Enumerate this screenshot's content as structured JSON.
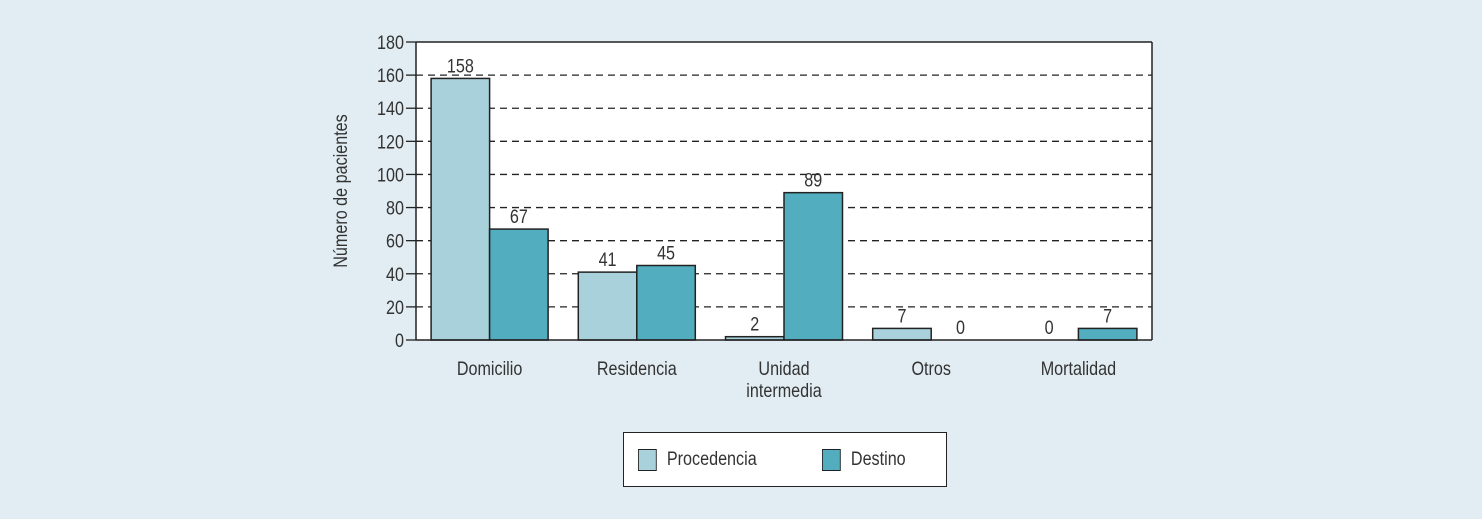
{
  "chart_data": {
    "type": "bar",
    "title": "",
    "xlabel": "",
    "ylabel": "Número de pacientes",
    "ylim": [
      0,
      180
    ],
    "yticks": [
      0,
      20,
      40,
      60,
      80,
      100,
      120,
      140,
      160,
      180
    ],
    "grid": "horizontal dashed",
    "legend_position": "bottom",
    "categories": [
      "Domicilio",
      "Residencia",
      "Unidad intermedia",
      "Otros",
      "Mortalidad"
    ],
    "category_lines": [
      [
        "Domicilio"
      ],
      [
        "Residencia"
      ],
      [
        "Unidad",
        "intermedia"
      ],
      [
        "Otros"
      ],
      [
        "Mortalidad"
      ]
    ],
    "series": [
      {
        "name": "Procedencia",
        "values": [
          158,
          41,
          2,
          7,
          0
        ],
        "color": "#a9d1db"
      },
      {
        "name": "Destino",
        "values": [
          67,
          45,
          89,
          0,
          7
        ],
        "color": "#52adbf"
      }
    ]
  }
}
